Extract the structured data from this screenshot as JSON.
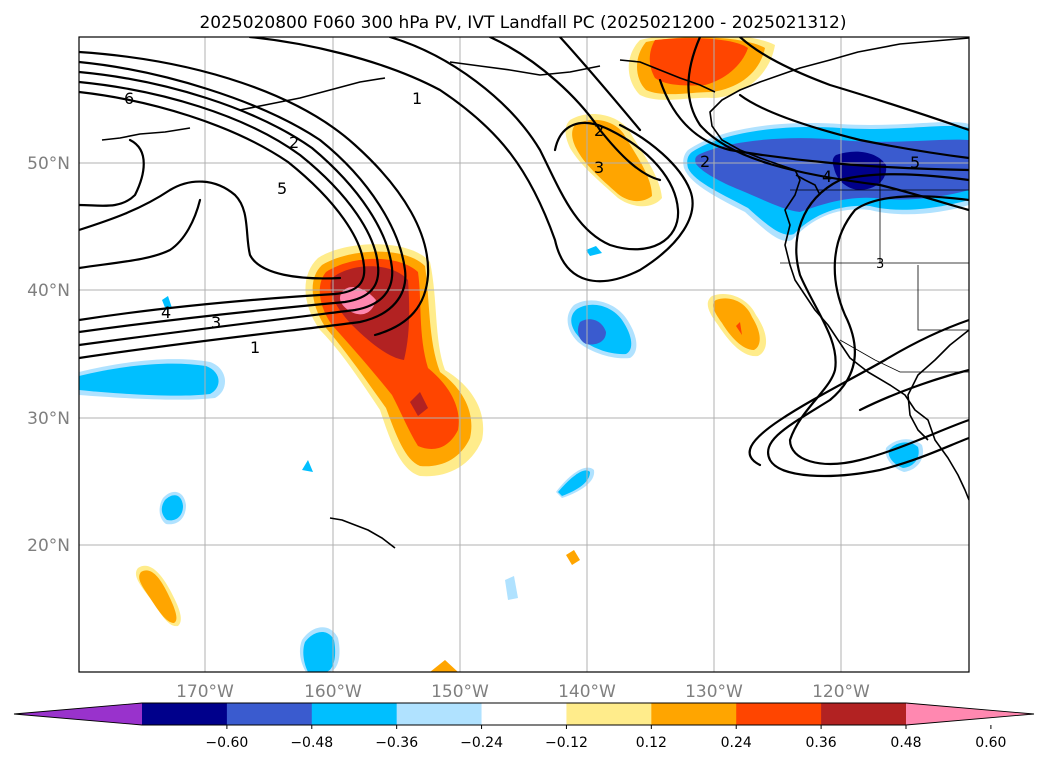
{
  "title": "2025020800 F060 300 hPa PV, IVT Landfall PC (2025021200 - 2025021312)",
  "lat_labels": [
    "50°N",
    "40°N",
    "30°N",
    "20°N"
  ],
  "lon_labels": [
    "170°W",
    "160°W",
    "150°W",
    "140°W",
    "130°W",
    "120°W"
  ],
  "contour_labels": [
    "6",
    "2",
    "5",
    "4",
    "3",
    "1",
    "1",
    "2",
    "3",
    "2",
    "4",
    "5",
    "3"
  ],
  "colorbar": {
    "ticks": [
      "−0.60",
      "−0.48",
      "−0.36",
      "−0.24",
      "−0.12",
      "0.12",
      "0.24",
      "0.36",
      "0.48",
      "0.60"
    ],
    "colors": [
      "#9932cc",
      "#00008b",
      "#3a5bcf",
      "#00bfff",
      "#b0e2ff",
      "#ffffff",
      "#ffec8b",
      "#ffa500",
      "#ff4500",
      "#b22222",
      "#ff88b0"
    ],
    "levels": [
      -0.6,
      -0.48,
      -0.36,
      -0.24,
      -0.12,
      0.12,
      0.24,
      0.36,
      0.48,
      0.6
    ],
    "extend": "both"
  },
  "map": {
    "projection": "PlateCarree",
    "lon_range": [
      -180,
      -110
    ],
    "lat_range": [
      10,
      60
    ]
  }
}
